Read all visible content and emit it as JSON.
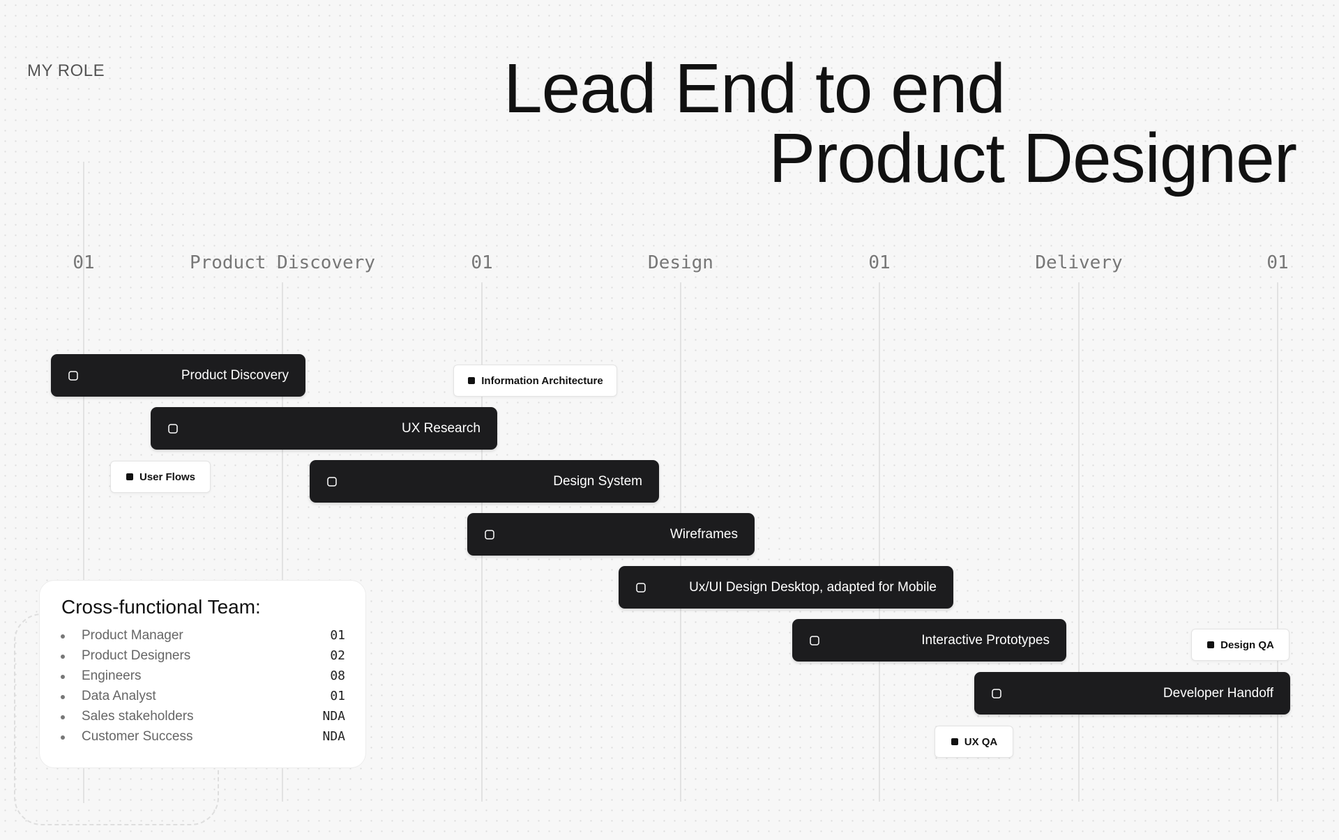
{
  "header": {
    "label": "MY ROLE",
    "title_lines": [
      "Lead End to end",
      "Product Designer"
    ]
  },
  "timeline": {
    "columns": [
      "01",
      "Product Discovery",
      "01",
      "Design",
      "01",
      "Delivery",
      "01"
    ],
    "tasks": [
      "Product Discovery",
      "UX Research",
      "Design System",
      "Wireframes",
      "Ux/UI Design Desktop, adapted for Mobile",
      "Interactive Prototypes",
      "Developer Handoff"
    ],
    "chips": [
      "Information Architecture",
      "User Flows",
      "Design QA",
      "UX QA"
    ]
  },
  "team": {
    "title": "Cross-functional Team:",
    "members": [
      [
        "Product Manager",
        "01"
      ],
      [
        "Product Designers",
        "02"
      ],
      [
        "Engineers",
        "08"
      ],
      [
        "Data Analyst",
        "01"
      ],
      [
        "Sales stakeholders",
        "NDA"
      ],
      [
        "Customer Success",
        "NDA"
      ]
    ]
  }
}
